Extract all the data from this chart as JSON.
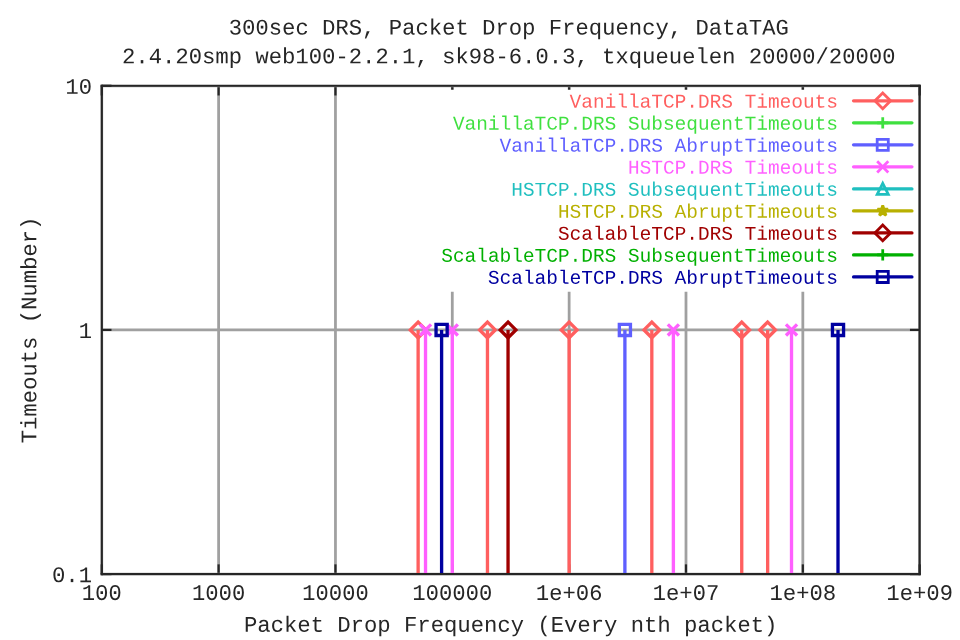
{
  "chart_data": {
    "type": "lollipop",
    "title": "300sec DRS, Packet Drop Frequency, DataTAG",
    "subtitle": "2.4.20smp web100-2.2.1, sk98-6.0.3, txqueuelen 20000/20000",
    "xlabel": "Packet Drop Frequency (Every nth packet)",
    "ylabel": "Timeouts (Number)",
    "log": "xy",
    "xlim": [
      100,
      1000000000
    ],
    "xticks": [
      100,
      1000,
      10000,
      100000,
      {
        "value": 1000000,
        "label": "1e+06"
      },
      {
        "value": 10000000,
        "label": "1e+07"
      },
      {
        "value": 100000000,
        "label": "1e+08"
      },
      {
        "value": 1000000000,
        "label": "1e+09"
      }
    ],
    "ylim": [
      0.1,
      10
    ],
    "yticks": [
      0.1,
      1,
      10
    ],
    "grid": true,
    "legend": "top right",
    "series": [
      {
        "name": "VanillaTCP.DRS Timeouts",
        "color": "#ff5f5f",
        "marker": "diamond",
        "x": [
          51000,
          200000,
          1000000,
          5100000,
          30000000,
          50000000
        ],
        "values": [
          1,
          1,
          1,
          1,
          1,
          1
        ]
      },
      {
        "name": "VanillaTCP.DRS SubsequentTimeouts",
        "color": "#3fe03f",
        "marker": "cross"
      },
      {
        "name": "VanillaTCP.DRS AbruptTimeouts",
        "color": "#5f5fff",
        "marker": "square",
        "x": [
          3000000
        ],
        "values": [
          1
        ]
      },
      {
        "name": "HSTCP.DRS Timeouts",
        "color": "#ff5fff",
        "marker": "x",
        "x": [
          59000,
          100000,
          7800000,
          80000000
        ],
        "values": [
          1,
          1,
          1,
          1
        ]
      },
      {
        "name": "HSTCP.DRS SubsequentTimeouts",
        "color": "#1fbfbf",
        "marker": "triangle"
      },
      {
        "name": "HSTCP.DRS AbruptTimeouts",
        "color": "#b8b000",
        "marker": "star"
      },
      {
        "name": "ScalableTCP.DRS Timeouts",
        "color": "#a00000",
        "marker": "diamond",
        "x": [
          300000
        ],
        "values": [
          1
        ]
      },
      {
        "name": "ScalableTCP.DRS SubsequentTimeouts",
        "color": "#00b000",
        "marker": "cross"
      },
      {
        "name": "ScalableTCP.DRS AbruptTimeouts",
        "color": "#0000a0",
        "marker": "square",
        "x": [
          81000,
          200000000
        ],
        "values": [
          1,
          1
        ]
      }
    ]
  }
}
